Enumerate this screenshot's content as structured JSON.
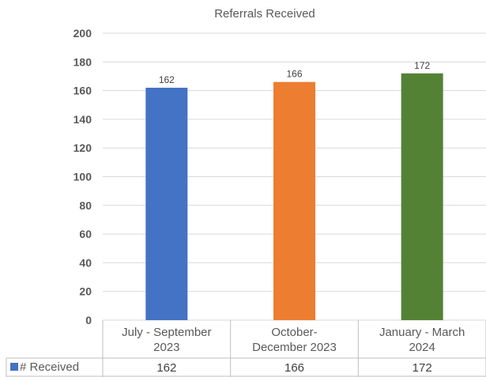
{
  "chart_data": {
    "type": "bar",
    "title": "Referrals Received",
    "xlabel": "",
    "ylabel": "",
    "categories": [
      "July - September 2023",
      "October- December 2023",
      "January - March 2024"
    ],
    "category_lines": [
      [
        "July - September",
        "2023"
      ],
      [
        "October-",
        "December 2023"
      ],
      [
        "January - March",
        "2024"
      ]
    ],
    "series": [
      {
        "name": "# Received",
        "values": [
          162,
          166,
          172
        ]
      }
    ],
    "bar_colors": [
      "#4472C4",
      "#ED7D31",
      "#548235"
    ],
    "legend_color": "#4472C4",
    "ylim": [
      0,
      200
    ],
    "y_ticks": [
      0,
      20,
      40,
      60,
      80,
      100,
      120,
      140,
      160,
      180,
      200
    ],
    "grid": true,
    "data_table": true,
    "legend": "data-table"
  }
}
